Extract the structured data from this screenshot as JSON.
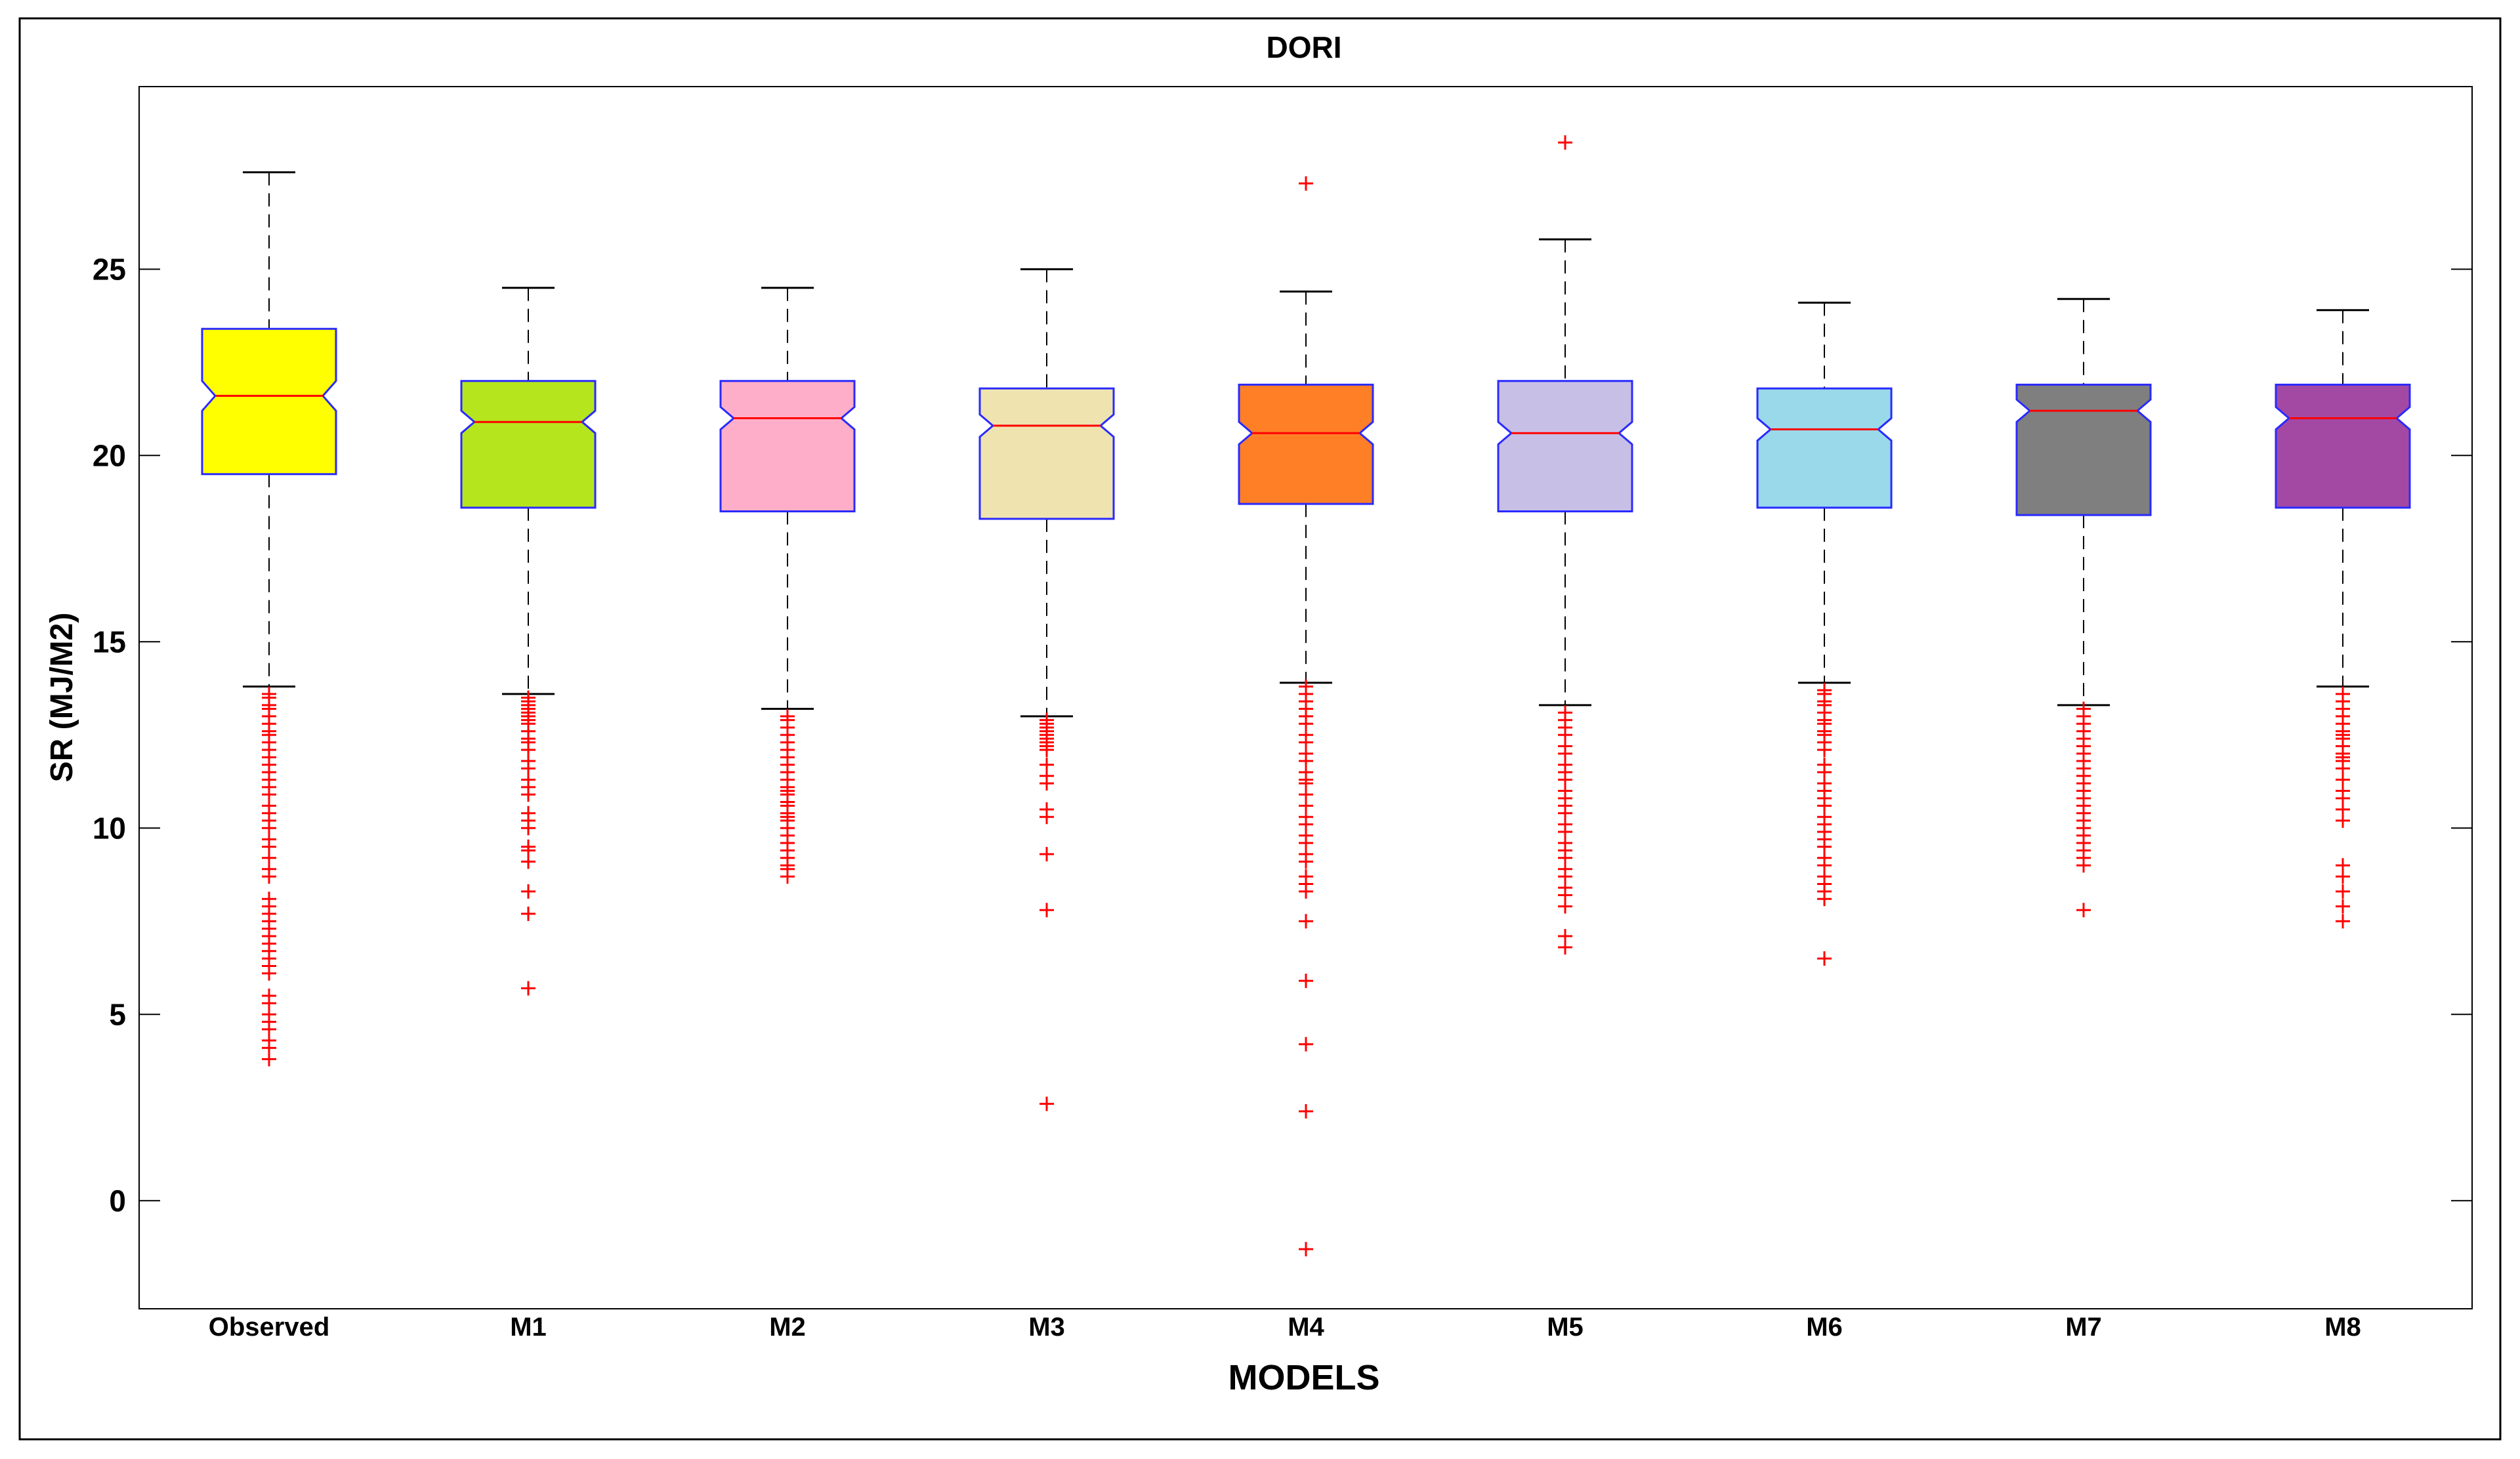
{
  "chart_data": {
    "type": "boxplot",
    "title": "DORI",
    "xlabel": "MODELS",
    "ylabel": "SR (MJ/M2)",
    "ylim": [
      -2.9,
      29.9
    ],
    "yticks": [
      0,
      5,
      10,
      15,
      20,
      25
    ],
    "grid": false,
    "notched": true,
    "whisker_color": "#000000",
    "box_edge_color": "#2a2aff",
    "median_color": "#ff0000",
    "outlier_color": "#ff0000",
    "outlier_marker": "+",
    "categories": [
      "Observed",
      "M1",
      "M2",
      "M3",
      "M4",
      "M5",
      "M6",
      "M7",
      "M8"
    ],
    "boxes": [
      {
        "name": "Observed",
        "color": "#ffff00",
        "q1": 19.5,
        "median": 21.6,
        "q3": 23.4,
        "notch_low": 21.2,
        "notch_high": 22.0,
        "whisker_low": 13.8,
        "whisker_high": 27.6,
        "outliers": [
          13.6,
          13.5,
          13.3,
          13.2,
          13.0,
          12.8,
          12.6,
          12.5,
          12.3,
          12.1,
          11.9,
          11.7,
          11.5,
          11.3,
          11.1,
          10.9,
          10.6,
          10.4,
          10.2,
          10.0,
          9.7,
          9.5,
          9.2,
          8.9,
          8.7,
          8.1,
          7.9,
          7.7,
          7.5,
          7.3,
          7.1,
          6.9,
          6.7,
          6.5,
          6.3,
          6.1,
          5.5,
          5.3,
          5.0,
          4.8,
          4.6,
          4.3,
          4.1,
          3.8
        ]
      },
      {
        "name": "M1",
        "color": "#b5e61d",
        "q1": 18.6,
        "median": 20.9,
        "q3": 22.0,
        "notch_low": 20.6,
        "notch_high": 21.2,
        "whisker_low": 13.6,
        "whisker_high": 24.5,
        "outliers": [
          13.5,
          13.4,
          13.3,
          13.2,
          13.1,
          13.0,
          12.9,
          12.8,
          12.6,
          12.4,
          12.3,
          12.1,
          11.8,
          11.6,
          11.3,
          11.1,
          10.9,
          10.4,
          10.2,
          10.0,
          9.5,
          9.4,
          9.1,
          8.3,
          7.7,
          5.7
        ]
      },
      {
        "name": "M2",
        "color": "#ffaec9",
        "q1": 18.5,
        "median": 21.0,
        "q3": 22.0,
        "notch_low": 20.7,
        "notch_high": 21.3,
        "whisker_low": 13.2,
        "whisker_high": 24.5,
        "outliers": [
          13.0,
          12.9,
          12.7,
          12.5,
          12.3,
          12.1,
          11.9,
          11.7,
          11.5,
          11.3,
          11.1,
          11.0,
          10.9,
          10.7,
          10.6,
          10.4,
          10.3,
          10.2,
          10.0,
          9.8,
          9.6,
          9.4,
          9.2,
          9.0,
          8.9,
          8.7
        ]
      },
      {
        "name": "M3",
        "color": "#efe4b0",
        "q1": 18.3,
        "median": 20.8,
        "q3": 21.8,
        "notch_low": 20.5,
        "notch_high": 21.1,
        "whisker_low": 13.0,
        "whisker_high": 25.0,
        "outliers": [
          12.9,
          12.8,
          12.7,
          12.6,
          12.5,
          12.4,
          12.3,
          12.2,
          12.1,
          11.7,
          11.4,
          11.2,
          10.5,
          10.3,
          9.3,
          7.8,
          2.6
        ]
      },
      {
        "name": "M4",
        "color": "#ff7f27",
        "q1": 18.7,
        "median": 20.6,
        "q3": 21.9,
        "notch_low": 20.3,
        "notch_high": 20.9,
        "whisker_low": 13.9,
        "whisker_high": 24.4,
        "outliers": [
          13.8,
          13.6,
          13.4,
          13.2,
          13.0,
          12.8,
          12.5,
          12.3,
          12.0,
          11.8,
          11.5,
          11.3,
          11.2,
          10.9,
          10.6,
          10.3,
          10.1,
          9.8,
          9.6,
          9.3,
          9.1,
          8.7,
          8.5,
          8.3,
          7.5,
          5.9,
          4.2,
          2.4,
          -1.3,
          27.3
        ]
      },
      {
        "name": "M5",
        "color": "#c8bfe7",
        "q1": 18.5,
        "median": 20.6,
        "q3": 22.0,
        "notch_low": 20.3,
        "notch_high": 20.9,
        "whisker_low": 13.3,
        "whisker_high": 25.8,
        "outliers": [
          13.1,
          12.9,
          12.7,
          12.5,
          12.2,
          12.0,
          11.7,
          11.5,
          11.3,
          11.0,
          10.8,
          10.6,
          10.4,
          10.1,
          9.9,
          9.6,
          9.4,
          9.2,
          8.9,
          8.7,
          8.4,
          8.2,
          7.9,
          7.1,
          6.8,
          28.4
        ]
      },
      {
        "name": "M6",
        "color": "#99d9ea",
        "q1": 18.6,
        "median": 20.7,
        "q3": 21.8,
        "notch_low": 20.4,
        "notch_high": 21.0,
        "whisker_low": 13.9,
        "whisker_high": 24.1,
        "outliers": [
          13.7,
          13.6,
          13.4,
          13.3,
          13.1,
          12.9,
          12.8,
          12.6,
          12.5,
          12.3,
          12.1,
          11.7,
          11.5,
          11.2,
          11.0,
          10.8,
          10.6,
          10.3,
          10.1,
          9.9,
          9.7,
          9.5,
          9.2,
          9.0,
          8.7,
          8.5,
          8.3,
          8.1,
          6.5
        ]
      },
      {
        "name": "M7",
        "color": "#7f7f7f",
        "q1": 18.4,
        "median": 21.2,
        "q3": 21.9,
        "notch_low": 20.9,
        "notch_high": 21.5,
        "whisker_low": 13.3,
        "whisker_high": 24.2,
        "outliers": [
          13.2,
          13.0,
          12.8,
          12.6,
          12.4,
          12.2,
          12.0,
          11.8,
          11.6,
          11.4,
          11.2,
          11.0,
          10.8,
          10.6,
          10.4,
          10.2,
          10.0,
          9.8,
          9.6,
          9.4,
          9.2,
          9.0,
          7.8
        ]
      },
      {
        "name": "M8",
        "color": "#a349a4",
        "q1": 18.6,
        "median": 21.0,
        "q3": 21.9,
        "notch_low": 20.7,
        "notch_high": 21.3,
        "whisker_low": 13.8,
        "whisker_high": 23.9,
        "outliers": [
          13.6,
          13.4,
          13.2,
          13.0,
          12.8,
          12.6,
          12.5,
          12.4,
          12.2,
          12.0,
          11.9,
          11.8,
          11.6,
          11.3,
          11.0,
          10.8,
          10.5,
          10.2,
          9.0,
          8.7,
          8.3,
          7.9,
          7.5
        ]
      }
    ]
  }
}
